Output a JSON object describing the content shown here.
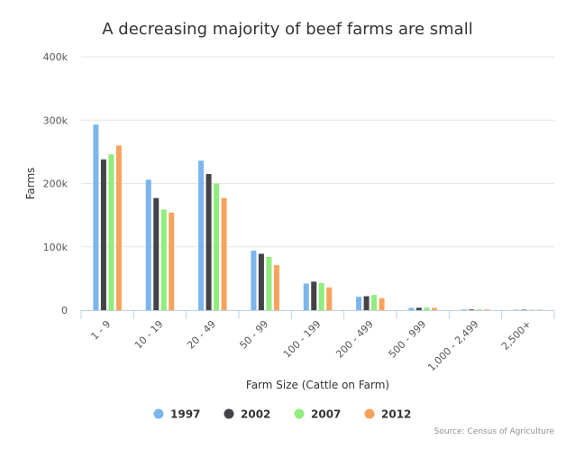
{
  "chart_data": {
    "type": "bar",
    "title": "A decreasing majority of beef farms are small",
    "xlabel": "Farm Size (Cattle on Farm)",
    "ylabel": "Farms",
    "categories": [
      "1 - 9",
      "10 - 19",
      "20 - 49",
      "50 - 99",
      "100 - 199",
      "200 - 499",
      "500 - 999",
      "1,000 - 2,499",
      "2,500+"
    ],
    "ylim": [
      0,
      400000
    ],
    "yticks": [
      {
        "value": 0,
        "label": "0"
      },
      {
        "value": 100000,
        "label": "100k"
      },
      {
        "value": 200000,
        "label": "200k"
      },
      {
        "value": 300000,
        "label": "300k"
      },
      {
        "value": 400000,
        "label": "400k"
      }
    ],
    "series": [
      {
        "name": "1997",
        "color": "#7cb5ec",
        "values": [
          293000,
          206000,
          236000,
          94000,
          42000,
          21000,
          3500,
          1000,
          300
        ]
      },
      {
        "name": "2002",
        "color": "#434348",
        "values": [
          238000,
          177000,
          215000,
          89000,
          45000,
          22000,
          3800,
          1100,
          300
        ]
      },
      {
        "name": "2007",
        "color": "#90ed7d",
        "values": [
          246000,
          159000,
          200000,
          84000,
          43000,
          24000,
          4000,
          1200,
          300
        ]
      },
      {
        "name": "2012",
        "color": "#f7a35c",
        "values": [
          260000,
          154000,
          177000,
          71000,
          36000,
          19000,
          3500,
          1000,
          300
        ]
      }
    ],
    "grid": true,
    "legend_position": "bottom-center",
    "credit": "Source: Census of Agriculture"
  }
}
